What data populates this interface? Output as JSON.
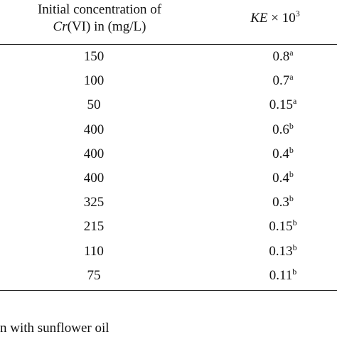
{
  "header": {
    "col1_line1": "Initial concentration of",
    "col1_cr": "Cr",
    "col1_rest": "(VI) in (mg/L)",
    "col2_var": "KE",
    "col2_times": " × 10",
    "col2_exp": "3"
  },
  "rows": [
    {
      "conc": "150",
      "ke": "0.8",
      "sup": "a"
    },
    {
      "conc": "100",
      "ke": "0.7",
      "sup": "a"
    },
    {
      "conc": "50",
      "ke": "0.15",
      "sup": "a"
    },
    {
      "conc": "400",
      "ke": "0.6",
      "sup": "b"
    },
    {
      "conc": "400",
      "ke": "0.4",
      "sup": "b"
    },
    {
      "conc": "400",
      "ke": "0.4",
      "sup": "b"
    },
    {
      "conc": "325",
      "ke": "0.3",
      "sup": "b"
    },
    {
      "conc": "215",
      "ke": "0.15",
      "sup": "b"
    },
    {
      "conc": "110",
      "ke": "0.13",
      "sup": "b"
    },
    {
      "conc": "75",
      "ke": "0.11",
      "sup": "b"
    }
  ],
  "footnote": "n with sunflower oil"
}
